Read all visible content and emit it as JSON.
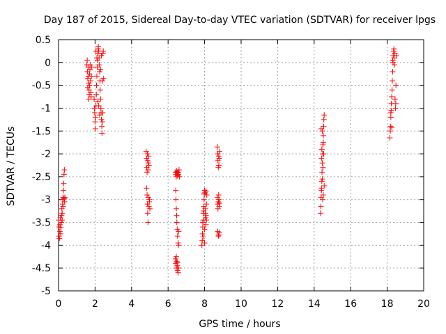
{
  "chart_data": {
    "type": "scatter",
    "title": "Day 187 of 2015, Sidereal Day-to-day VTEC variation (SDTVAR) for receiver lpgs",
    "xlabel": "GPS time / hours",
    "ylabel": "SDTVAR / TECUs",
    "xlim": [
      0,
      20
    ],
    "ylim": [
      -5,
      0.5
    ],
    "xticks": [
      0,
      2,
      4,
      6,
      8,
      10,
      12,
      14,
      16,
      18,
      20
    ],
    "yticks": [
      0.5,
      0,
      -0.5,
      -1,
      -1.5,
      -2,
      -2.5,
      -3,
      -3.5,
      -4,
      -4.5,
      -5
    ],
    "xtick_labels": [
      "0",
      "2",
      "4",
      "6",
      "8",
      "10",
      "12",
      "14",
      "16",
      "18",
      "20"
    ],
    "ytick_labels": [
      "0.5",
      "0",
      "-0.5",
      "-1",
      "-1.5",
      "-2",
      "-2.5",
      "-3",
      "-3.5",
      "-4",
      "-4.5",
      "-5"
    ],
    "grid": true,
    "marker": "+",
    "series": [
      {
        "name": "SDTVAR",
        "color": "#ff0000",
        "points": [
          [
            0.0,
            -3.45
          ],
          [
            0.02,
            -3.6
          ],
          [
            0.03,
            -3.8
          ],
          [
            0.05,
            -3.85
          ],
          [
            0.07,
            -3.7
          ],
          [
            0.08,
            -3.55
          ],
          [
            0.1,
            -3.4
          ],
          [
            0.12,
            -3.75
          ],
          [
            0.13,
            -3.62
          ],
          [
            0.15,
            -3.5
          ],
          [
            0.17,
            -3.35
          ],
          [
            0.18,
            -3.2
          ],
          [
            0.2,
            -3.3
          ],
          [
            0.22,
            -3.1
          ],
          [
            0.23,
            -3.0
          ],
          [
            0.25,
            -2.95
          ],
          [
            0.27,
            -2.8
          ],
          [
            0.28,
            -2.65
          ],
          [
            0.3,
            -2.45
          ],
          [
            0.32,
            -2.35
          ],
          [
            0.2,
            -3.45
          ],
          [
            0.25,
            -3.15
          ],
          [
            0.3,
            -2.98
          ],
          [
            0.33,
            -3.05
          ],
          [
            0.35,
            -2.95
          ],
          [
            1.55,
            -0.05
          ],
          [
            1.58,
            -0.2
          ],
          [
            1.6,
            -0.35
          ],
          [
            1.62,
            -0.1
          ],
          [
            1.63,
            -0.3
          ],
          [
            1.65,
            -0.45
          ],
          [
            1.67,
            -0.6
          ],
          [
            1.68,
            -0.7
          ],
          [
            1.7,
            -0.25
          ],
          [
            1.72,
            -0.15
          ],
          [
            1.73,
            -0.05
          ],
          [
            1.75,
            -0.4
          ],
          [
            1.77,
            -0.65
          ],
          [
            1.78,
            -0.75
          ],
          [
            1.8,
            -0.3
          ],
          [
            1.82,
            -0.1
          ],
          [
            1.57,
            0.05
          ],
          [
            1.6,
            -0.55
          ],
          [
            1.65,
            -0.8
          ],
          [
            1.7,
            -0.5
          ],
          [
            1.95,
            -0.8
          ],
          [
            1.97,
            -1.0
          ],
          [
            1.98,
            -1.1
          ],
          [
            2.0,
            -1.3
          ],
          [
            2.02,
            -1.45
          ],
          [
            2.03,
            -1.2
          ],
          [
            2.05,
            -0.95
          ],
          [
            2.07,
            -0.7
          ],
          [
            2.08,
            -0.5
          ],
          [
            2.1,
            -0.3
          ],
          [
            2.12,
            -0.1
          ],
          [
            2.13,
            0.05
          ],
          [
            2.15,
            0.2
          ],
          [
            2.17,
            0.3
          ],
          [
            2.18,
            0.35
          ],
          [
            2.2,
            0.25
          ],
          [
            2.22,
            0.1
          ],
          [
            2.23,
            -0.05
          ],
          [
            2.25,
            -0.2
          ],
          [
            2.27,
            -0.4
          ],
          [
            2.28,
            -0.6
          ],
          [
            2.3,
            -0.8
          ],
          [
            2.32,
            -1.0
          ],
          [
            2.33,
            -1.1
          ],
          [
            2.35,
            -1.25
          ],
          [
            2.37,
            -1.4
          ],
          [
            2.38,
            -1.55
          ],
          [
            2.4,
            -1.3
          ],
          [
            2.42,
            -1.1
          ],
          [
            2.43,
            0.2
          ],
          [
            2.45,
            0.25
          ],
          [
            2.47,
            -0.35
          ],
          [
            2.1,
            0.1
          ],
          [
            2.15,
            -0.85
          ],
          [
            2.2,
            -0.95
          ],
          [
            2.25,
            -1.15
          ],
          [
            2.3,
            -0.15
          ],
          [
            2.35,
            0.15
          ],
          [
            2.4,
            -0.4
          ],
          [
            2.05,
            0.25
          ],
          [
            4.8,
            -1.95
          ],
          [
            4.82,
            -2.1
          ],
          [
            4.83,
            -2.3
          ],
          [
            4.85,
            -2.4
          ],
          [
            4.87,
            -2.0
          ],
          [
            4.88,
            -2.15
          ],
          [
            4.9,
            -2.35
          ],
          [
            4.92,
            -2.2
          ],
          [
            4.93,
            -2.05
          ],
          [
            4.95,
            -2.25
          ],
          [
            4.82,
            -2.75
          ],
          [
            4.85,
            -2.9
          ],
          [
            4.87,
            -3.1
          ],
          [
            4.88,
            -3.3
          ],
          [
            4.9,
            -3.5
          ],
          [
            4.92,
            -2.95
          ],
          [
            4.95,
            -3.15
          ],
          [
            4.97,
            -3.05
          ],
          [
            5.0,
            -3.2
          ],
          [
            4.98,
            -3.0
          ],
          [
            6.4,
            -2.4
          ],
          [
            6.42,
            -2.45
          ],
          [
            6.45,
            -2.5
          ],
          [
            6.47,
            -2.38
          ],
          [
            6.5,
            -2.42
          ],
          [
            6.52,
            -2.48
          ],
          [
            6.55,
            -2.4
          ],
          [
            6.57,
            -2.45
          ],
          [
            6.6,
            -2.35
          ],
          [
            6.62,
            -2.5
          ],
          [
            6.42,
            -2.8
          ],
          [
            6.43,
            -3.0
          ],
          [
            6.45,
            -3.2
          ],
          [
            6.47,
            -3.35
          ],
          [
            6.48,
            -3.5
          ],
          [
            6.5,
            -3.65
          ],
          [
            6.52,
            -3.8
          ],
          [
            6.55,
            -3.95
          ],
          [
            6.57,
            -4.0
          ],
          [
            6.58,
            -3.7
          ],
          [
            6.4,
            -4.3
          ],
          [
            6.42,
            -4.4
          ],
          [
            6.45,
            -4.5
          ],
          [
            6.47,
            -4.35
          ],
          [
            6.5,
            -4.45
          ],
          [
            6.52,
            -4.55
          ],
          [
            6.55,
            -4.6
          ],
          [
            6.57,
            -4.5
          ],
          [
            6.45,
            -4.25
          ],
          [
            6.5,
            -4.38
          ],
          [
            7.85,
            -4.0
          ],
          [
            7.87,
            -3.9
          ],
          [
            7.88,
            -3.75
          ],
          [
            7.9,
            -3.6
          ],
          [
            7.92,
            -3.45
          ],
          [
            7.93,
            -3.3
          ],
          [
            7.95,
            -3.15
          ],
          [
            7.97,
            -3.0
          ],
          [
            7.98,
            -2.88
          ],
          [
            8.0,
            -2.8
          ],
          [
            8.02,
            -2.85
          ],
          [
            8.03,
            -3.2
          ],
          [
            8.05,
            -3.4
          ],
          [
            8.07,
            -3.55
          ],
          [
            8.08,
            -3.35
          ],
          [
            8.1,
            -3.1
          ],
          [
            8.12,
            -2.9
          ],
          [
            7.9,
            -3.5
          ],
          [
            7.95,
            -3.25
          ],
          [
            8.0,
            -3.65
          ],
          [
            8.05,
            -3.3
          ],
          [
            8.1,
            -3.45
          ],
          [
            7.92,
            -3.82
          ],
          [
            8.0,
            -3.95
          ],
          [
            8.08,
            -2.82
          ],
          [
            8.7,
            -1.85
          ],
          [
            8.72,
            -2.0
          ],
          [
            8.73,
            -2.15
          ],
          [
            8.75,
            -2.3
          ],
          [
            8.77,
            -2.05
          ],
          [
            8.78,
            -2.25
          ],
          [
            8.8,
            -2.1
          ],
          [
            8.82,
            -1.95
          ],
          [
            8.7,
            -2.95
          ],
          [
            8.72,
            -3.1
          ],
          [
            8.73,
            -3.2
          ],
          [
            8.75,
            -3.05
          ],
          [
            8.77,
            -2.9
          ],
          [
            8.78,
            -3.0
          ],
          [
            8.8,
            -3.15
          ],
          [
            8.82,
            -3.08
          ],
          [
            8.72,
            -3.7
          ],
          [
            8.75,
            -3.8
          ],
          [
            8.78,
            -3.78
          ],
          [
            8.8,
            -3.72
          ],
          [
            14.35,
            -3.3
          ],
          [
            14.37,
            -3.15
          ],
          [
            14.38,
            -2.95
          ],
          [
            14.4,
            -2.8
          ],
          [
            14.42,
            -2.6
          ],
          [
            14.43,
            -2.4
          ],
          [
            14.45,
            -2.2
          ],
          [
            14.47,
            -2.0
          ],
          [
            14.48,
            -1.8
          ],
          [
            14.5,
            -1.6
          ],
          [
            14.52,
            -1.4
          ],
          [
            14.53,
            -1.25
          ],
          [
            14.55,
            -1.15
          ],
          [
            14.45,
            -1.5
          ],
          [
            14.5,
            -1.75
          ],
          [
            14.38,
            -1.45
          ],
          [
            14.4,
            -2.1
          ],
          [
            14.45,
            -2.55
          ],
          [
            14.5,
            -2.9
          ],
          [
            14.55,
            -2.7
          ],
          [
            14.42,
            -1.9
          ],
          [
            14.48,
            -2.3
          ],
          [
            14.52,
            -2.0
          ],
          [
            14.4,
            -2.75
          ],
          [
            14.47,
            -3.0
          ],
          [
            18.15,
            -1.65
          ],
          [
            18.17,
            -1.5
          ],
          [
            18.18,
            -1.4
          ],
          [
            18.2,
            -1.2
          ],
          [
            18.22,
            -1.05
          ],
          [
            18.23,
            -0.9
          ],
          [
            18.25,
            -0.75
          ],
          [
            18.27,
            -0.6
          ],
          [
            18.28,
            -0.4
          ],
          [
            18.3,
            -0.2
          ],
          [
            18.32,
            0.0
          ],
          [
            18.33,
            0.15
          ],
          [
            18.35,
            0.25
          ],
          [
            18.37,
            0.3
          ],
          [
            18.38,
            0.1
          ],
          [
            18.4,
            -0.05
          ],
          [
            18.42,
            0.2
          ],
          [
            18.43,
            -0.8
          ],
          [
            18.45,
            -1.0
          ],
          [
            18.47,
            -0.9
          ],
          [
            18.48,
            -0.5
          ],
          [
            18.5,
            0.15
          ],
          [
            18.2,
            -1.1
          ],
          [
            18.25,
            -1.42
          ],
          [
            18.3,
            0.05
          ]
        ]
      }
    ]
  }
}
